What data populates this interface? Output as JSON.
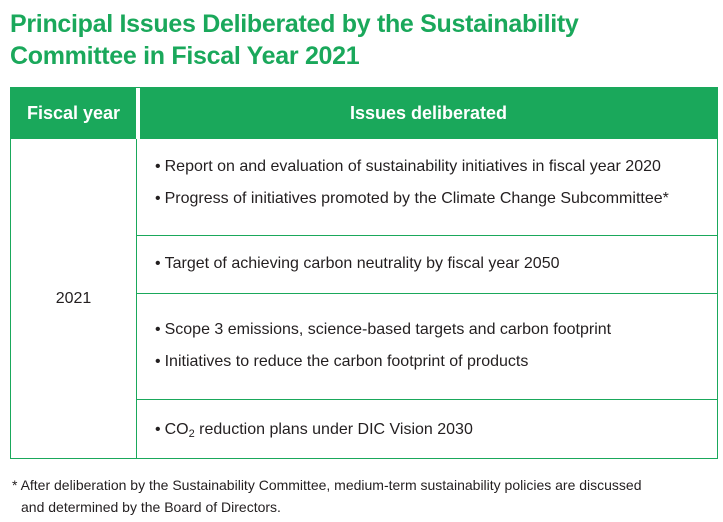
{
  "title": {
    "line1": "Principal Issues Deliberated by the Sustainability",
    "line2": "Committee in Fiscal Year 2021"
  },
  "table": {
    "headers": {
      "fiscal_year": "Fiscal year",
      "issues": "Issues deliberated"
    },
    "year": "2021",
    "rows": [
      {
        "items": [
          "Report on and evaluation of sustainability initiatives in fiscal year 2020",
          "Progress of initiatives promoted by the Climate Change Subcommittee*"
        ]
      },
      {
        "items": [
          "Target of achieving carbon neutrality by fiscal year 2050"
        ]
      },
      {
        "items": [
          "Scope 3 emissions, science-based targets and carbon footprint",
          "Initiatives to reduce the carbon footprint of products"
        ]
      },
      {
        "items": [
          {
            "prefix": "CO",
            "sub": "2",
            "rest": " reduction plans under DIC Vision 2030"
          }
        ]
      }
    ]
  },
  "footnote": {
    "line1": "* After deliberation by the Sustainability Committee, medium-term sustainability policies are discussed",
    "line2": "and determined by the Board of Directors."
  },
  "colors": {
    "accent": "#1aa85b",
    "text": "#231f20",
    "header_text": "#ffffff"
  }
}
